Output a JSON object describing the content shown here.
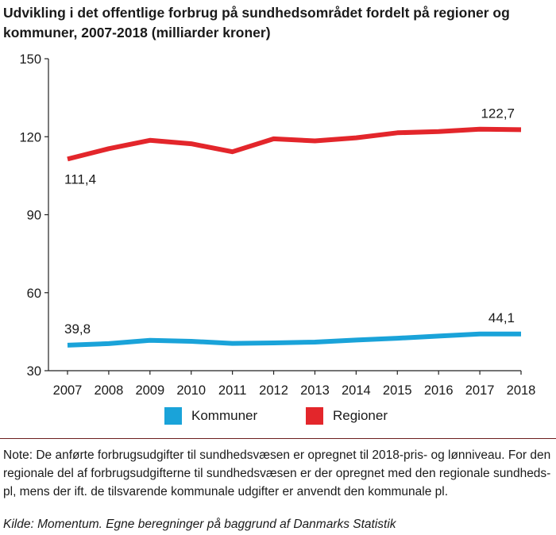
{
  "title": "Udvikling i det offentlige forbrug på sundhedsområdet fordelt på regioner og kommuner, 2007-2018 (milliarder kroner)",
  "note": "Note: De anførte forbrugsudgifter til sundhedsvæsen er opregnet til 2018-pris- og lønniveau.  For den regionale del af forbrugsudgifterne til sundhedsvæsen er der opregnet med den regionale sundheds-pl, mens der ift. de tilsvarende kommunale udgifter er anvendt den kommunale pl.",
  "source": "Kilde: Momentum. Egne beregninger på baggrund af Danmarks Statistik",
  "colors": {
    "kommuner": "#1aa3d9",
    "regioner": "#e3262b",
    "axis": "#222222"
  },
  "chart_data": {
    "type": "line",
    "title": "Udvikling i det offentlige forbrug på sundhedsområdet fordelt på regioner og kommuner, 2007-2018 (milliarder kroner)",
    "x": [
      "2007",
      "2008",
      "2009",
      "2010",
      "2011",
      "2012",
      "2013",
      "2014",
      "2015",
      "2016",
      "2017",
      "2018"
    ],
    "ylim": [
      30,
      150
    ],
    "yticks": [
      "30",
      "60",
      "90",
      "120",
      "150"
    ],
    "grid": false,
    "legend": "bottom",
    "series": [
      {
        "name": "Kommuner",
        "color": "#1aa3d9",
        "values": [
          39.8,
          40.4,
          41.7,
          41.3,
          40.5,
          40.7,
          41.0,
          41.8,
          42.5,
          43.3,
          44.1,
          44.1
        ],
        "labels": [
          {
            "index": 0,
            "text": "39,8"
          },
          {
            "index": 11,
            "text": "44,1"
          }
        ]
      },
      {
        "name": "Regioner",
        "color": "#e3262b",
        "values": [
          111.4,
          115.4,
          118.6,
          117.3,
          114.2,
          119.2,
          118.4,
          119.6,
          121.5,
          122.0,
          122.9,
          122.7
        ],
        "labels": [
          {
            "index": 0,
            "text": "111,4"
          },
          {
            "index": 11,
            "text": "122,7"
          }
        ]
      }
    ]
  }
}
